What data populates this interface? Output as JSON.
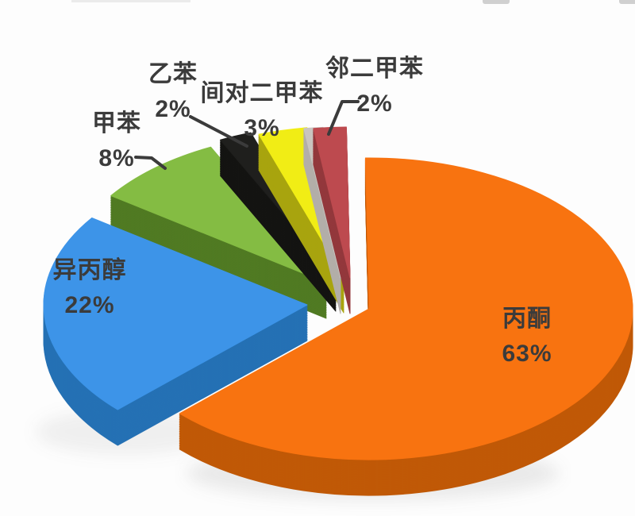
{
  "chart_data": {
    "type": "pie",
    "style": "3d-exploded",
    "title": "",
    "unit": "%",
    "legend_position": "none",
    "labels_on_chart": true,
    "label_color": "#3B3B3B",
    "background": "#FDFDFD",
    "separator_color": "#C9C4BF",
    "separator_side_color": "#B3AEA9",
    "slices": [
      {
        "id": "acetone",
        "label": "丙酮",
        "value": 63,
        "pct_label": "63%",
        "color": "#F87310",
        "side_color": "#C05907"
      },
      {
        "id": "isopropanol",
        "label": "异丙醇",
        "value": 22,
        "pct_label": "22%",
        "color": "#3D94E8",
        "side_color": "#2571B4"
      },
      {
        "id": "toluene",
        "label": "甲苯",
        "value": 8,
        "pct_label": "8%",
        "color": "#84BC43",
        "side_color": "#507A23"
      },
      {
        "id": "ethylbenzene",
        "label": "乙苯",
        "value": 2,
        "pct_label": "2%",
        "color": "#1F1F1D",
        "side_color": "#141412"
      },
      {
        "id": "mp-xylene",
        "label": "间对二甲苯",
        "value": 3,
        "pct_label": "3%",
        "color": "#F1ED15",
        "side_color": "#A8A40F"
      },
      {
        "id": "o-xylene",
        "label": "邻二甲苯",
        "value": 2,
        "pct_label": "2%",
        "color": "#BD4A4F",
        "side_color": "#93383C"
      }
    ]
  }
}
